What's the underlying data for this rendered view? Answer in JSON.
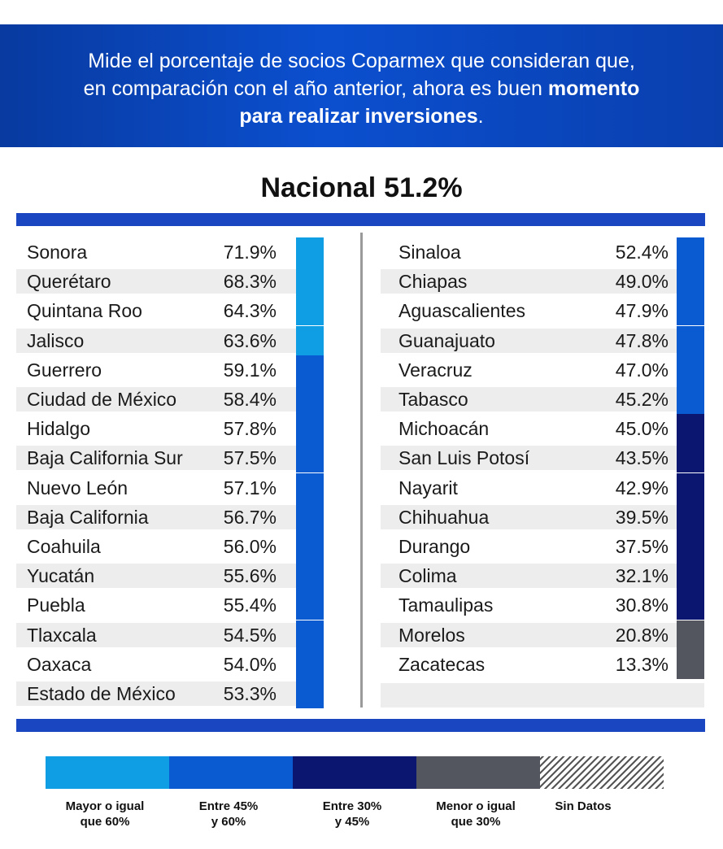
{
  "header": {
    "line1": "Mide el porcentaje de socios Coparmex que consideran que,",
    "line2_regular": "en comparación con el año anterior, ahora es buen",
    "line2_bold": "momento",
    "line3_bold": "para realizar inversiones",
    "line3_end": "."
  },
  "national": {
    "label": "Nacional",
    "value": "51.2%"
  },
  "colors": {
    "ge60": "#0f9ee3",
    "45to60": "#0a5ad1",
    "30to45": "#0b1670",
    "le30": "#53565e"
  },
  "legend": [
    {
      "key": "ge60",
      "line1": "Mayor o igual",
      "line2": "que 60%"
    },
    {
      "key": "45to60",
      "line1": "Entre 45%",
      "line2": "y 60%"
    },
    {
      "key": "30to45",
      "line1": "Entre 30%",
      "line2": "y 45%"
    },
    {
      "key": "le30",
      "line1": "Menor o igual",
      "line2": "que 30%"
    },
    {
      "key": "nodata",
      "line1": "Sin Datos",
      "line2": ""
    }
  ],
  "chart_data": {
    "type": "table",
    "title": "Nacional 51.2%",
    "national_value": 51.2,
    "columns": [
      [
        {
          "state": "Sonora",
          "value": 71.9,
          "label": "71.9%",
          "category": "ge60"
        },
        {
          "state": "Querétaro",
          "value": 68.3,
          "label": "68.3%",
          "category": "ge60"
        },
        {
          "state": "Quintana Roo",
          "value": 64.3,
          "label": "64.3%",
          "category": "ge60"
        },
        {
          "state": "Jalisco",
          "value": 63.6,
          "label": "63.6%",
          "category": "ge60"
        },
        {
          "state": "Guerrero",
          "value": 59.1,
          "label": "59.1%",
          "category": "45to60"
        },
        {
          "state": "Ciudad de México",
          "value": 58.4,
          "label": "58.4%",
          "category": "45to60"
        },
        {
          "state": "Hidalgo",
          "value": 57.8,
          "label": "57.8%",
          "category": "45to60"
        },
        {
          "state": "Baja California Sur",
          "value": 57.5,
          "label": "57.5%",
          "category": "45to60"
        },
        {
          "state": "Nuevo León",
          "value": 57.1,
          "label": "57.1%",
          "category": "45to60"
        },
        {
          "state": "Baja California",
          "value": 56.7,
          "label": "56.7%",
          "category": "45to60"
        },
        {
          "state": "Coahuila",
          "value": 56.0,
          "label": "56.0%",
          "category": "45to60"
        },
        {
          "state": "Yucatán",
          "value": 55.6,
          "label": "55.6%",
          "category": "45to60"
        },
        {
          "state": "Puebla",
          "value": 55.4,
          "label": "55.4%",
          "category": "45to60"
        },
        {
          "state": "Tlaxcala",
          "value": 54.5,
          "label": "54.5%",
          "category": "45to60"
        },
        {
          "state": "Oaxaca",
          "value": 54.0,
          "label": "54.0%",
          "category": "45to60"
        },
        {
          "state": "Estado de México",
          "value": 53.3,
          "label": "53.3%",
          "category": "45to60"
        }
      ],
      [
        {
          "state": "Sinaloa",
          "value": 52.4,
          "label": "52.4%",
          "category": "45to60"
        },
        {
          "state": "Chiapas",
          "value": 49.0,
          "label": "49.0%",
          "category": "45to60"
        },
        {
          "state": "Aguascalientes",
          "value": 47.9,
          "label": "47.9%",
          "category": "45to60"
        },
        {
          "state": "Guanajuato",
          "value": 47.8,
          "label": "47.8%",
          "category": "45to60"
        },
        {
          "state": "Veracruz",
          "value": 47.0,
          "label": "47.0%",
          "category": "45to60"
        },
        {
          "state": "Tabasco",
          "value": 45.2,
          "label": "45.2%",
          "category": "45to60"
        },
        {
          "state": "Michoacán",
          "value": 45.0,
          "label": "45.0%",
          "category": "30to45"
        },
        {
          "state": "San Luis Potosí",
          "value": 43.5,
          "label": "43.5%",
          "category": "30to45"
        },
        {
          "state": "Nayarit",
          "value": 42.9,
          "label": "42.9%",
          "category": "30to45"
        },
        {
          "state": "Chihuahua",
          "value": 39.5,
          "label": "39.5%",
          "category": "30to45"
        },
        {
          "state": "Durango",
          "value": 37.5,
          "label": "37.5%",
          "category": "30to45"
        },
        {
          "state": "Colima",
          "value": 32.1,
          "label": "32.1%",
          "category": "30to45"
        },
        {
          "state": "Tamaulipas",
          "value": 30.8,
          "label": "30.8%",
          "category": "30to45"
        },
        {
          "state": "Morelos",
          "value": 20.8,
          "label": "20.8%",
          "category": "le30"
        },
        {
          "state": "Zacatecas",
          "value": 13.3,
          "label": "13.3%",
          "category": "le30"
        }
      ]
    ]
  }
}
